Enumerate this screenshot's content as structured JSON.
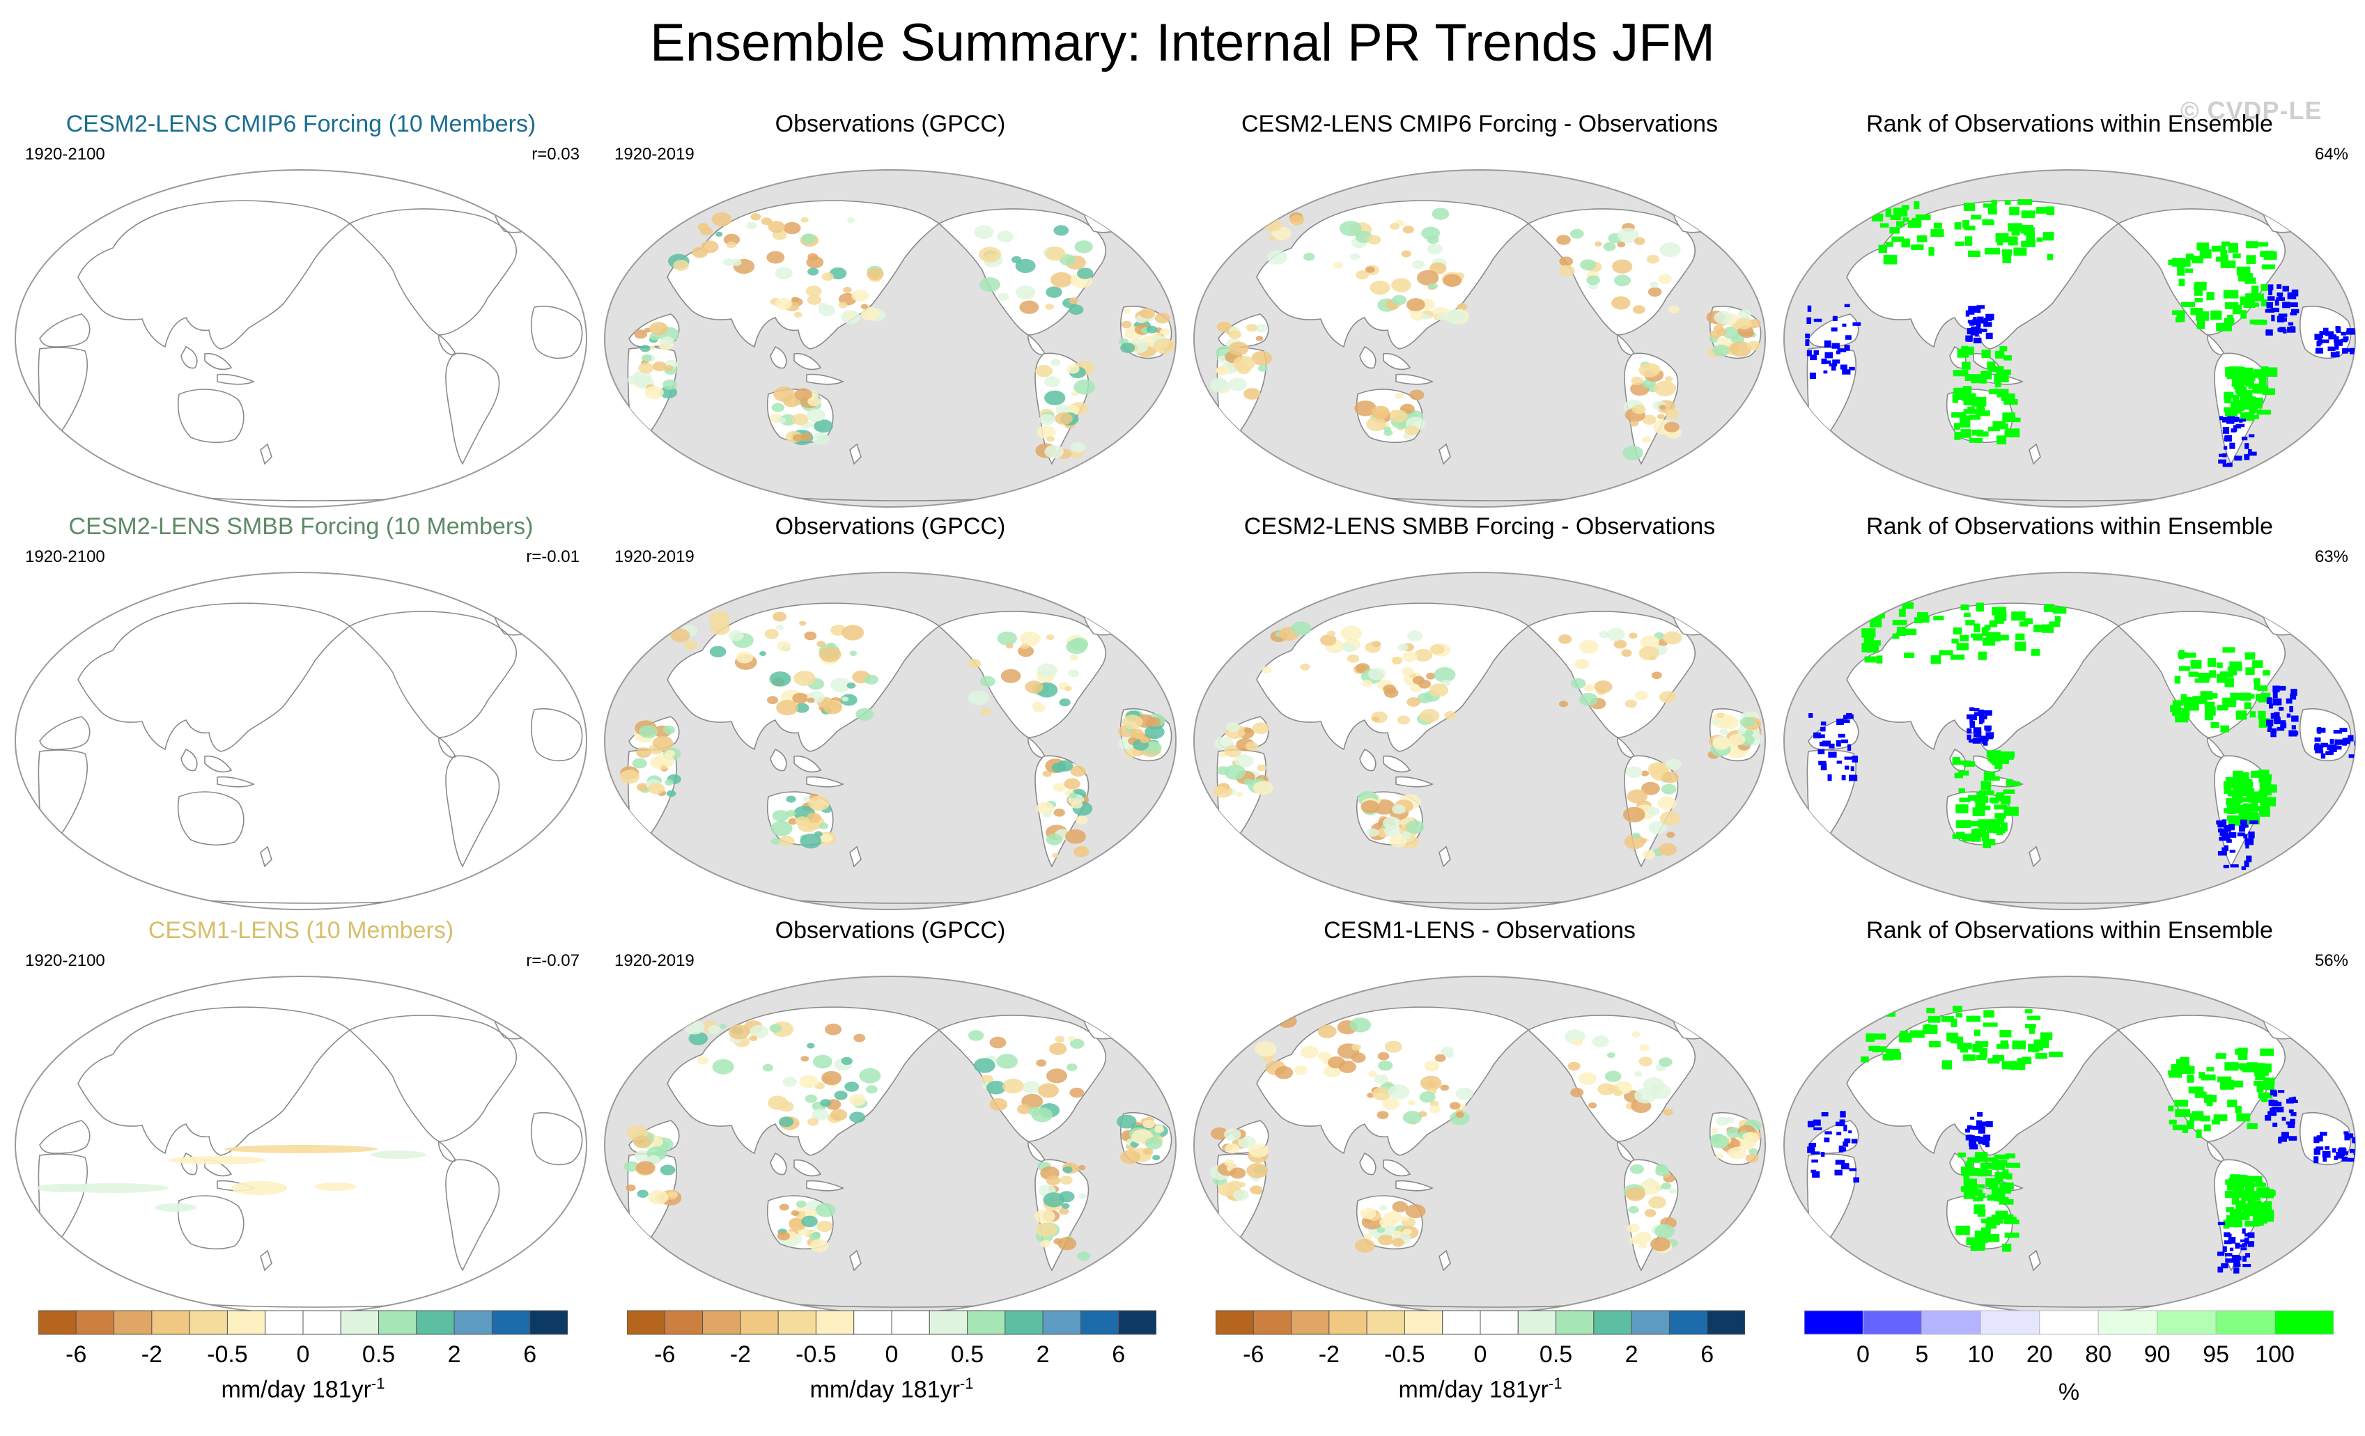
{
  "title": "Ensemble Summary: Internal PR Trends JFM",
  "watermark": "© CVDP-LE",
  "colors": {
    "ocean_gray": "#e1e1e1",
    "land_outline": "#8a8a8a",
    "blue_title": "#1a6e90",
    "green_title": "#5e8a66",
    "yellow_title": "#d6bf6c"
  },
  "rows": [
    {
      "panels": [
        {
          "title": "CESM2-LENS CMIP6 Forcing (10 Members)",
          "years": "1920-2100",
          "right": "r=0.03",
          "type": "ensemble",
          "fill": "#ffffff"
        },
        {
          "title": "Observations (GPCC)",
          "years": "1920-2019",
          "right": "",
          "type": "obs",
          "fill": "#e1e1e1"
        },
        {
          "title": "CESM2-LENS CMIP6 Forcing - Observations",
          "years": "",
          "right": "",
          "type": "diff",
          "fill": "#e1e1e1"
        },
        {
          "title": "Rank of Observations within Ensemble",
          "years": "",
          "right": "64%",
          "type": "rank",
          "fill": "#e1e1e1"
        }
      ]
    },
    {
      "panels": [
        {
          "title": "CESM2-LENS SMBB Forcing (10 Members)",
          "years": "1920-2100",
          "right": "r=-0.01",
          "type": "ensemble",
          "fill": "#ffffff"
        },
        {
          "title": "Observations (GPCC)",
          "years": "1920-2019",
          "right": "",
          "type": "obs",
          "fill": "#e1e1e1"
        },
        {
          "title": "CESM2-LENS SMBB Forcing - Observations",
          "years": "",
          "right": "",
          "type": "diff",
          "fill": "#e1e1e1"
        },
        {
          "title": "Rank of Observations within Ensemble",
          "years": "",
          "right": "63%",
          "type": "rank",
          "fill": "#e1e1e1"
        }
      ]
    },
    {
      "panels": [
        {
          "title": "CESM1-LENS (10 Members)",
          "years": "1920-2100",
          "right": "r=-0.07",
          "type": "ensemble",
          "fill": "#ffffff"
        },
        {
          "title": "Observations (GPCC)",
          "years": "1920-2019",
          "right": "",
          "type": "obs",
          "fill": "#e1e1e1"
        },
        {
          "title": "CESM1-LENS - Observations",
          "years": "",
          "right": "",
          "type": "diff",
          "fill": "#e1e1e1"
        },
        {
          "title": "Rank of Observations within Ensemble",
          "years": "",
          "right": "56%",
          "type": "rank",
          "fill": "#e1e1e1"
        }
      ]
    }
  ],
  "chart_data": {
    "type": "heatmap",
    "title": "Ensemble Summary: Internal PR Trends JFM",
    "projection": "Robinson-like global maps, Pacific-centered",
    "trend_colorbar": {
      "label": "mm/day 181yr",
      "label_superscript": "-1",
      "colors": [
        "#b5651d",
        "#cc8040",
        "#e0a665",
        "#f0c882",
        "#f6dc9c",
        "#fdf1c2",
        "#ffffff",
        "#ffffff",
        "#dff5df",
        "#a6e6b6",
        "#5dbfa2",
        "#5e9cc4",
        "#1c6bab",
        "#0d3a62"
      ],
      "tick_labels": [
        "-6",
        "-2",
        "-0.5",
        "0",
        "0.5",
        "2",
        "6"
      ]
    },
    "rank_colorbar": {
      "label": "%",
      "colors": [
        "#0000ff",
        "#6666ff",
        "#b3b3ff",
        "#e5e5ff",
        "#ffffff",
        "#e5ffe5",
        "#b3ffb3",
        "#80ff80",
        "#00ff00"
      ],
      "tick_labels": [
        "0",
        "5",
        "10",
        "20",
        "80",
        "90",
        "95",
        "100"
      ]
    },
    "rank_percent": [
      64,
      63,
      56
    ],
    "pattern_correlation_r": [
      0.03,
      -0.01,
      -0.07
    ]
  }
}
